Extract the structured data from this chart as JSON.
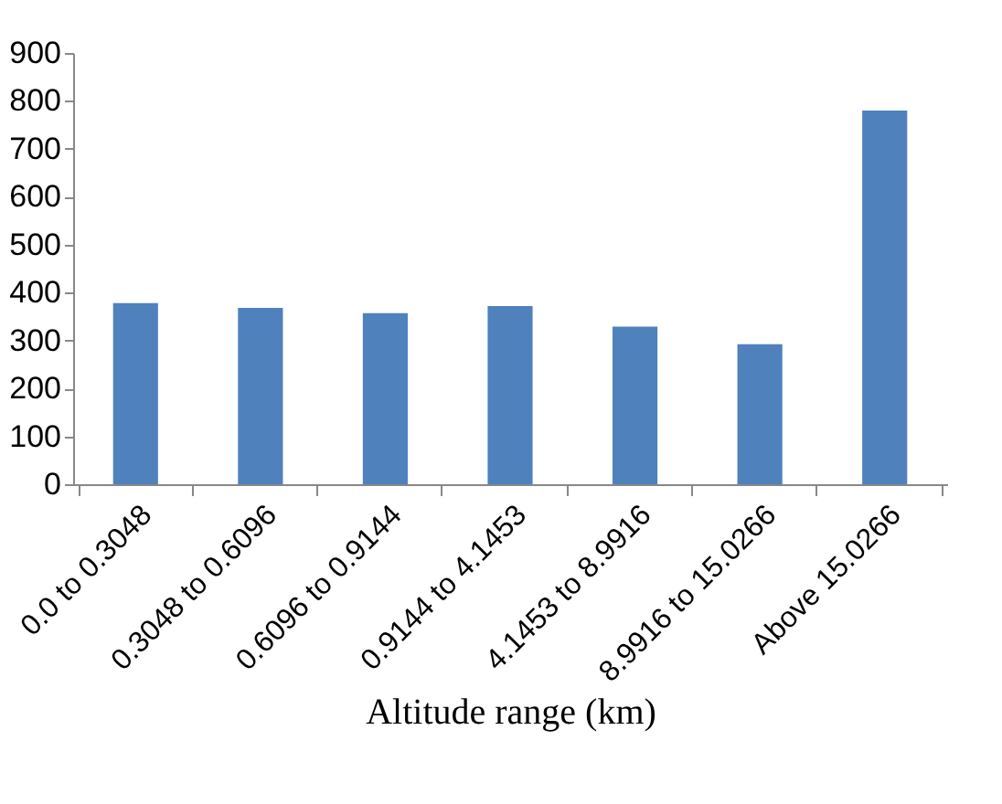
{
  "chart_data": {
    "type": "bar",
    "xlabel": "Altitude range (km)",
    "categories": [
      "0.0 to 0.3048",
      "0.3048 to 0.6096",
      "0.6096 to 0.9144",
      "0.9144 to 4.1453",
      "4.1453 to 8.9916",
      "8.9916 to 15.0266",
      "Above 15.0266"
    ],
    "values": [
      378,
      368,
      357,
      372,
      329,
      292,
      780
    ],
    "color": "#4f81bd",
    "ylim": [
      0,
      900
    ],
    "yticks": [
      0,
      100,
      200,
      300,
      400,
      500,
      600,
      700,
      800,
      900
    ],
    "grid": false
  }
}
